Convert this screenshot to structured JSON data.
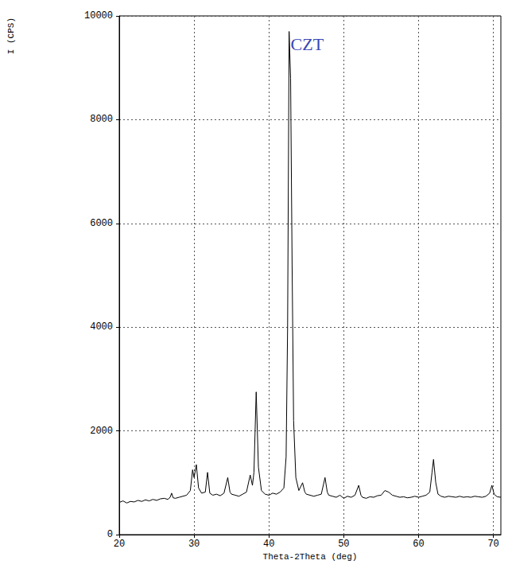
{
  "chart_data": {
    "type": "line",
    "x_label": "Theta-2Theta (deg)",
    "y_label": "I (CPS)",
    "color": "#000000",
    "grid": true,
    "xlim": [
      20,
      71
    ],
    "xticks": [
      20,
      30,
      40,
      50,
      60,
      70
    ],
    "ylim": [
      0,
      10000
    ],
    "yticks": [
      0,
      2000,
      4000,
      6000,
      8000,
      10000
    ],
    "annotations": [
      {
        "text": "CZT",
        "x": 42.9,
        "y": 9450
      }
    ],
    "x": [
      20,
      20.5,
      21,
      21.5,
      22,
      22.5,
      23,
      23.5,
      24,
      24.5,
      25,
      25.5,
      26,
      26.5,
      26.8,
      27,
      27.2,
      27.5,
      28,
      28.5,
      29,
      29.5,
      29.8,
      30,
      30.3,
      30.6,
      31,
      31.5,
      31.8,
      32.1,
      32.5,
      33,
      33.5,
      34,
      34.5,
      34.8,
      35,
      35.5,
      36,
      36.5,
      37,
      37.5,
      37.8,
      38,
      38.3,
      38.6,
      39,
      39.5,
      40,
      40.5,
      41,
      41.5,
      42,
      42.3,
      42.5,
      42.7,
      42.9,
      43.1,
      43.3,
      43.6,
      44,
      44.5,
      44.8,
      45,
      45.5,
      46,
      46.5,
      47,
      47.5,
      47.8,
      48,
      48.5,
      49,
      49.5,
      50,
      50.5,
      51,
      51.5,
      52,
      52.3,
      52.5,
      53,
      53.5,
      54,
      54.5,
      55,
      55.5,
      56,
      56.5,
      57,
      57.5,
      58,
      58.5,
      59,
      59.5,
      60,
      60.5,
      61,
      61.5,
      61.8,
      62,
      62.3,
      62.6,
      63,
      63.5,
      64,
      64.5,
      65,
      65.5,
      66,
      66.5,
      67,
      67.5,
      68,
      68.5,
      69,
      69.5,
      69.8,
      70.1,
      70.5,
      71
    ],
    "values": [
      620,
      650,
      610,
      640,
      630,
      660,
      640,
      670,
      650,
      680,
      660,
      690,
      700,
      680,
      720,
      800,
      710,
      700,
      720,
      740,
      760,
      850,
      1250,
      1100,
      1350,
      900,
      800,
      820,
      1200,
      800,
      760,
      780,
      750,
      800,
      1100,
      820,
      780,
      760,
      740,
      780,
      820,
      1150,
      950,
      1200,
      2750,
      1300,
      850,
      780,
      760,
      800,
      780,
      820,
      900,
      1500,
      4000,
      9700,
      8800,
      5200,
      2200,
      1100,
      850,
      1000,
      820,
      780,
      760,
      740,
      760,
      780,
      1100,
      820,
      760,
      740,
      720,
      760,
      700,
      740,
      720,
      760,
      950,
      760,
      720,
      700,
      730,
      720,
      750,
      760,
      850,
      820,
      760,
      740,
      720,
      730,
      710,
      720,
      740,
      720,
      740,
      760,
      820,
      1200,
      1450,
      1000,
      780,
      740,
      720,
      740,
      730,
      720,
      740,
      720,
      730,
      720,
      740,
      730,
      720,
      740,
      800,
      950,
      780,
      730,
      720
    ]
  }
}
